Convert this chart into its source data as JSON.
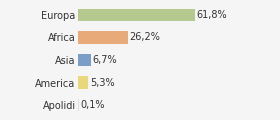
{
  "categories": [
    "Europa",
    "Africa",
    "Asia",
    "America",
    "Apolidi"
  ],
  "values": [
    61.8,
    26.2,
    6.7,
    5.3,
    0.1
  ],
  "labels": [
    "61,8%",
    "26,2%",
    "6,7%",
    "5,3%",
    "0,1%"
  ],
  "bar_colors": [
    "#b5c98e",
    "#e8aa78",
    "#7b9ec7",
    "#e8d87a",
    "#e0e0e0"
  ],
  "background_color": "#f5f5f5",
  "xlim": [
    0,
    80
  ],
  "label_fontsize": 7,
  "tick_fontsize": 7
}
